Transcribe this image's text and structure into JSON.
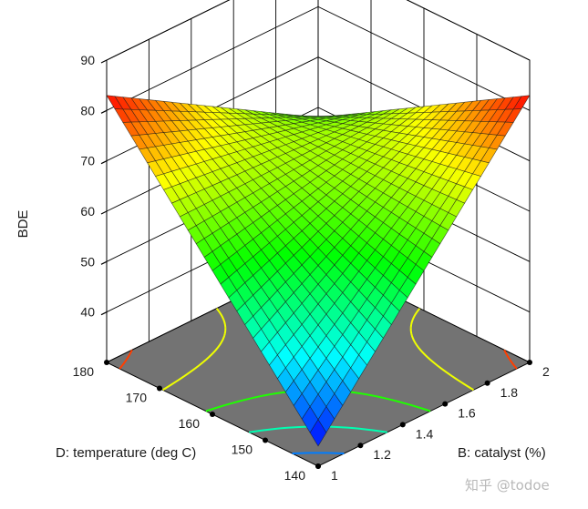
{
  "chart_data": {
    "type": "surface3d",
    "zlabel": "BDE",
    "xlabel": "D: temperature (deg C)",
    "ylabel": "B: catalyst (%)",
    "x_ticks": [
      "140",
      "150",
      "160",
      "170",
      "180"
    ],
    "y_ticks": [
      "1",
      "1.2",
      "1.4",
      "1.6",
      "1.8",
      "2"
    ],
    "z_ticks": [
      "40",
      "50",
      "60",
      "70",
      "80",
      "90"
    ],
    "xlim": [
      140,
      180
    ],
    "ylim": [
      1,
      2
    ],
    "zlim": [
      30,
      90
    ],
    "grid": true,
    "floor_contours": true,
    "colormap": [
      "#0000ff",
      "#00ffff",
      "#00ff00",
      "#ffff00",
      "#ff0000"
    ],
    "floor_color": "#737373",
    "corner_values": [
      {
        "temperature": 140,
        "catalyst": 1,
        "BDE": 34
      },
      {
        "temperature": 140,
        "catalyst": 2,
        "BDE": 83
      },
      {
        "temperature": 180,
        "catalyst": 1,
        "BDE": 83
      },
      {
        "temperature": 180,
        "catalyst": 2,
        "BDE": 58
      }
    ]
  },
  "watermark": "知乎 @todoe"
}
